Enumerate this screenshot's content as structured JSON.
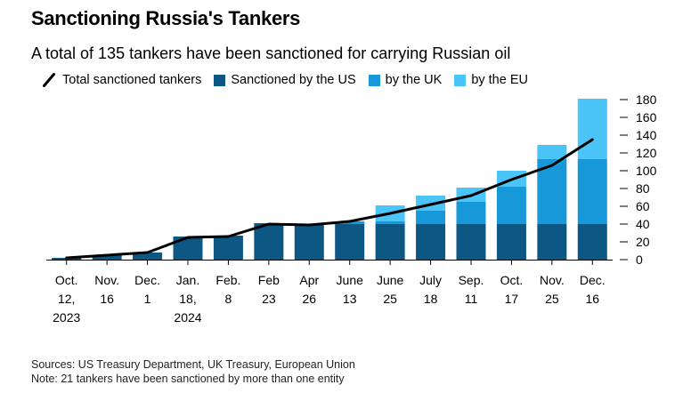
{
  "title": "Sanctioning Russia's Tankers",
  "subtitle": "A total of 135 tankers have been sanctioned for carrying Russian oil",
  "legend": {
    "total": "Total sanctioned tankers",
    "us": "Sanctioned by the US",
    "uk": "by the UK",
    "eu": "by the EU"
  },
  "colors": {
    "us": "#0c5784",
    "uk": "#1799d9",
    "eu": "#4bc4f7",
    "total": "#000000"
  },
  "footer": {
    "sources": "Sources: US Treasury Department, UK Treasury, European Union",
    "note": "Note: 21 tankers have been sanctioned by more than one entity"
  },
  "chart_data": {
    "type": "bar",
    "stacked": true,
    "categories": [
      [
        "Oct.",
        "12,",
        "2023"
      ],
      [
        "Nov.",
        "16"
      ],
      [
        "Dec.",
        "1"
      ],
      [
        "Jan.",
        "18,",
        "2024"
      ],
      [
        "Feb.",
        "8"
      ],
      [
        "Feb",
        "23"
      ],
      [
        "Apr",
        "26"
      ],
      [
        "June",
        "13"
      ],
      [
        "June",
        "25"
      ],
      [
        "July",
        "18"
      ],
      [
        "Sep.",
        "11"
      ],
      [
        "Oct.",
        "17"
      ],
      [
        "Nov.",
        "25"
      ],
      [
        "Dec.",
        "16"
      ]
    ],
    "series": [
      {
        "name": "Sanctioned by the US",
        "key": "us",
        "values": [
          2,
          5,
          8,
          26,
          27,
          41,
          40,
          40,
          40,
          40,
          40,
          40,
          40,
          40
        ]
      },
      {
        "name": "by the UK",
        "key": "uk",
        "values": [
          0,
          0,
          0,
          0,
          0,
          0,
          0,
          3,
          3,
          15,
          25,
          42,
          73,
          73
        ]
      },
      {
        "name": "by the EU",
        "key": "eu",
        "values": [
          0,
          0,
          0,
          0,
          0,
          0,
          0,
          0,
          18,
          17,
          16,
          18,
          16,
          68
        ]
      }
    ],
    "line": {
      "name": "Total sanctioned tankers",
      "values": [
        2,
        5,
        8,
        25,
        26,
        40,
        39,
        43,
        52,
        62,
        72,
        90,
        106,
        135
      ]
    },
    "yticks": [
      0,
      20,
      40,
      60,
      80,
      100,
      120,
      140,
      160,
      180
    ],
    "ylim": [
      0,
      180
    ],
    "y_axis_side": "right",
    "legend_position": "top-left",
    "grid": false
  }
}
